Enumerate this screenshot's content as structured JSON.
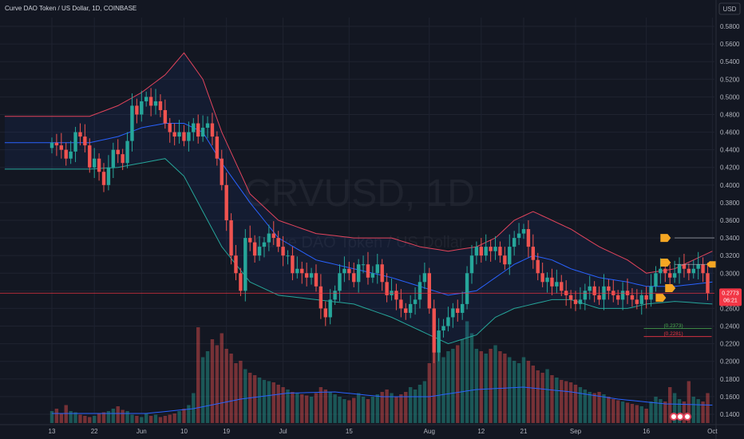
{
  "header": {
    "title": "Curve DAO Token / US Dollar, 1D, COINBASE",
    "currency_button": "USD"
  },
  "watermark": {
    "symbol": "CRVUSD, 1D",
    "name": "Curve DAO Token / US Dollar"
  },
  "chart_data": {
    "type": "candlestick",
    "symbol": "CRVUSD",
    "interval": "1D",
    "exchange": "COINBASE",
    "y_axis": {
      "range": [
        0.13,
        0.59
      ],
      "ticks": [
        "0.5800",
        "0.5600",
        "0.5400",
        "0.5200",
        "0.5000",
        "0.4800",
        "0.4600",
        "0.4400",
        "0.4200",
        "0.4000",
        "0.3800",
        "0.3600",
        "0.3400",
        "0.3200",
        "0.3000",
        "0.2800",
        "0.2600",
        "0.2400",
        "0.2200",
        "0.2000",
        "0.1800",
        "0.1600",
        "0.1400"
      ]
    },
    "x_axis": {
      "ticks": [
        {
          "label": "13",
          "day": 0
        },
        {
          "label": "22",
          "day": 9
        },
        {
          "label": "Jun",
          "day": 19
        },
        {
          "label": "10",
          "day": 28
        },
        {
          "label": "19",
          "day": 37
        },
        {
          "label": "Jul",
          "day": 49
        },
        {
          "label": "15",
          "day": 63
        },
        {
          "label": "Aug",
          "day": 80
        },
        {
          "label": "12",
          "day": 91
        },
        {
          "label": "21",
          "day": 100
        },
        {
          "label": "Sep",
          "day": 111
        },
        {
          "label": "16",
          "day": 126
        },
        {
          "label": "Oct",
          "day": 140
        }
      ]
    },
    "closes": [
      0.448,
      0.445,
      0.44,
      0.43,
      0.438,
      0.46,
      0.455,
      0.445,
      0.42,
      0.43,
      0.415,
      0.4,
      0.42,
      0.44,
      0.435,
      0.425,
      0.45,
      0.49,
      0.48,
      0.495,
      0.5,
      0.49,
      0.495,
      0.485,
      0.47,
      0.46,
      0.455,
      0.46,
      0.45,
      0.46,
      0.47,
      0.455,
      0.465,
      0.47,
      0.455,
      0.43,
      0.4,
      0.36,
      0.32,
      0.3,
      0.28,
      0.34,
      0.335,
      0.32,
      0.33,
      0.335,
      0.345,
      0.34,
      0.33,
      0.32,
      0.32,
      0.3,
      0.305,
      0.3,
      0.295,
      0.3,
      0.285,
      0.26,
      0.25,
      0.27,
      0.28,
      0.3,
      0.305,
      0.3,
      0.29,
      0.31,
      0.31,
      0.295,
      0.3,
      0.31,
      0.29,
      0.275,
      0.28,
      0.27,
      0.26,
      0.255,
      0.265,
      0.27,
      0.29,
      0.3,
      0.26,
      0.21,
      0.235,
      0.24,
      0.25,
      0.26,
      0.255,
      0.265,
      0.3,
      0.32,
      0.33,
      0.32,
      0.33,
      0.325,
      0.33,
      0.32,
      0.31,
      0.33,
      0.34,
      0.345,
      0.35,
      0.33,
      0.315,
      0.3,
      0.29,
      0.295,
      0.285,
      0.29,
      0.28,
      0.275,
      0.27,
      0.265,
      0.27,
      0.28,
      0.285,
      0.275,
      0.27,
      0.285,
      0.28,
      0.275,
      0.27,
      0.28,
      0.275,
      0.27,
      0.265,
      0.275,
      0.27,
      0.285,
      0.3,
      0.305,
      0.3,
      0.295,
      0.3,
      0.31,
      0.305,
      0.3,
      0.305,
      0.31,
      0.3,
      0.2773
    ],
    "bollinger": {
      "upper_samples": [
        [
          0,
          0.478
        ],
        [
          8,
          0.478
        ],
        [
          14,
          0.49
        ],
        [
          19,
          0.505
        ],
        [
          24,
          0.525
        ],
        [
          28,
          0.55
        ],
        [
          32,
          0.52
        ],
        [
          36,
          0.46
        ],
        [
          42,
          0.39
        ],
        [
          48,
          0.36
        ],
        [
          56,
          0.345
        ],
        [
          64,
          0.34
        ],
        [
          72,
          0.34
        ],
        [
          78,
          0.33
        ],
        [
          84,
          0.325
        ],
        [
          90,
          0.33
        ],
        [
          94,
          0.34
        ],
        [
          98,
          0.36
        ],
        [
          102,
          0.37
        ],
        [
          106,
          0.36
        ],
        [
          110,
          0.35
        ],
        [
          116,
          0.33
        ],
        [
          122,
          0.315
        ],
        [
          126,
          0.3
        ],
        [
          132,
          0.305
        ],
        [
          140,
          0.325
        ]
      ],
      "middle_samples": [
        [
          0,
          0.448
        ],
        [
          8,
          0.448
        ],
        [
          14,
          0.455
        ],
        [
          19,
          0.465
        ],
        [
          24,
          0.47
        ],
        [
          28,
          0.47
        ],
        [
          32,
          0.46
        ],
        [
          36,
          0.425
        ],
        [
          42,
          0.38
        ],
        [
          48,
          0.34
        ],
        [
          56,
          0.315
        ],
        [
          64,
          0.305
        ],
        [
          72,
          0.295
        ],
        [
          78,
          0.285
        ],
        [
          84,
          0.275
        ],
        [
          90,
          0.28
        ],
        [
          94,
          0.295
        ],
        [
          98,
          0.31
        ],
        [
          102,
          0.32
        ],
        [
          106,
          0.315
        ],
        [
          110,
          0.305
        ],
        [
          116,
          0.295
        ],
        [
          122,
          0.29
        ],
        [
          126,
          0.285
        ],
        [
          132,
          0.285
        ],
        [
          140,
          0.29
        ]
      ],
      "lower_samples": [
        [
          0,
          0.418
        ],
        [
          8,
          0.418
        ],
        [
          14,
          0.42
        ],
        [
          19,
          0.425
        ],
        [
          24,
          0.43
        ],
        [
          28,
          0.41
        ],
        [
          32,
          0.37
        ],
        [
          36,
          0.33
        ],
        [
          42,
          0.29
        ],
        [
          48,
          0.275
        ],
        [
          56,
          0.27
        ],
        [
          64,
          0.265
        ],
        [
          72,
          0.25
        ],
        [
          78,
          0.235
        ],
        [
          84,
          0.22
        ],
        [
          90,
          0.23
        ],
        [
          94,
          0.25
        ],
        [
          98,
          0.26
        ],
        [
          102,
          0.265
        ],
        [
          106,
          0.27
        ],
        [
          110,
          0.27
        ],
        [
          116,
          0.26
        ],
        [
          122,
          0.26
        ],
        [
          126,
          0.265
        ],
        [
          132,
          0.268
        ],
        [
          140,
          0.265
        ]
      ]
    },
    "volume": {
      "values": [
        0.1,
        0.12,
        0.08,
        0.15,
        0.1,
        0.09,
        0.07,
        0.06,
        0.05,
        0.06,
        0.08,
        0.09,
        0.1,
        0.12,
        0.14,
        0.11,
        0.1,
        0.07,
        0.06,
        0.05,
        0.08,
        0.06,
        0.07,
        0.05,
        0.06,
        0.07,
        0.08,
        0.1,
        0.12,
        0.15,
        0.25,
        0.8,
        0.55,
        0.6,
        0.7,
        0.65,
        0.75,
        0.62,
        0.58,
        0.5,
        0.52,
        0.45,
        0.42,
        0.4,
        0.38,
        0.36,
        0.35,
        0.34,
        0.32,
        0.3,
        0.28,
        0.26,
        0.25,
        0.24,
        0.23,
        0.22,
        0.25,
        0.3,
        0.28,
        0.26,
        0.24,
        0.22,
        0.2,
        0.19,
        0.21,
        0.25,
        0.22,
        0.2,
        0.22,
        0.24,
        0.26,
        0.28,
        0.25,
        0.22,
        0.24,
        0.26,
        0.3,
        0.28,
        0.32,
        0.35,
        0.5,
        0.95,
        0.6,
        0.55,
        0.6,
        0.62,
        0.65,
        0.7,
        0.85,
        0.75,
        0.62,
        0.6,
        0.58,
        0.62,
        0.65,
        0.6,
        0.58,
        0.55,
        0.52,
        0.5,
        0.55,
        0.52,
        0.48,
        0.44,
        0.42,
        0.45,
        0.4,
        0.38,
        0.36,
        0.35,
        0.34,
        0.32,
        0.3,
        0.28,
        0.26,
        0.25,
        0.26,
        0.24,
        0.22,
        0.2,
        0.19,
        0.18,
        0.17,
        0.16,
        0.15,
        0.14,
        0.12,
        0.18,
        0.22,
        0.2,
        0.18,
        0.3,
        0.25,
        0.2,
        0.18,
        0.35,
        0.22,
        0.2,
        0.18,
        0.25,
        0.2
      ],
      "ma_samples": [
        [
          0,
          0.08
        ],
        [
          20,
          0.08
        ],
        [
          30,
          0.12
        ],
        [
          40,
          0.2
        ],
        [
          50,
          0.25
        ],
        [
          60,
          0.26
        ],
        [
          70,
          0.22
        ],
        [
          80,
          0.22
        ],
        [
          90,
          0.28
        ],
        [
          100,
          0.3
        ],
        [
          110,
          0.26
        ],
        [
          120,
          0.2
        ],
        [
          130,
          0.16
        ],
        [
          140,
          0.15
        ]
      ]
    },
    "annotations": [
      {
        "type": "horizontal-line",
        "price": 0.34,
        "color": "#b2b5be",
        "from_day": 132
      },
      {
        "type": "horizontal-line",
        "price": 0.31,
        "color": "#b2b5be",
        "from_day": 132
      },
      {
        "type": "horizontal-line",
        "price": 0.2773,
        "color": "#f23645",
        "from_day": 0
      },
      {
        "type": "marker",
        "price": 0.34,
        "day": 130,
        "color": "#f5a623"
      },
      {
        "type": "marker",
        "price": 0.312,
        "day": 130,
        "color": "#f5a623"
      },
      {
        "type": "marker",
        "price": 0.283,
        "day": 131,
        "color": "#f5a623"
      },
      {
        "type": "marker",
        "price": 0.272,
        "day": 129,
        "color": "#f5a623"
      },
      {
        "type": "level",
        "label": "(0.2373)",
        "price": 0.2373,
        "color": "#4caf50"
      },
      {
        "type": "level",
        "label": "(0.2281)",
        "price": 0.2281,
        "color": "#f23645"
      }
    ],
    "last_price": {
      "value": "0.2773",
      "countdown": "06:21",
      "color": "#f23645"
    },
    "colors": {
      "up": "#26a69a",
      "down": "#ef5350",
      "bb_upper": "#e2445c",
      "bb_middle": "#2962ff",
      "bb_lower": "#26a69a",
      "band_fill": "#2962ff",
      "volume_ma": "#2962ff"
    }
  }
}
